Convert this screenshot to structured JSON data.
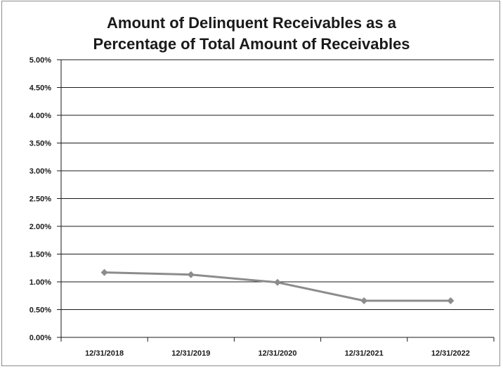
{
  "chart_data": {
    "type": "line",
    "title_lines": [
      "Amount of Delinquent Receivables as a",
      "Percentage of Total Amount of Receivables"
    ],
    "categories": [
      "12/31/2018",
      "12/31/2019",
      "12/31/2020",
      "12/31/2021",
      "12/31/2022"
    ],
    "values": [
      0.0117,
      0.0113,
      0.0099,
      0.0066,
      0.0066
    ],
    "ylim": [
      0,
      0.05
    ],
    "y_ticks": [
      0,
      0.005,
      0.01,
      0.015,
      0.02,
      0.025,
      0.03,
      0.035,
      0.04,
      0.045,
      0.05
    ],
    "y_tick_labels": [
      "0.00%",
      "0.50%",
      "1.00%",
      "1.50%",
      "2.00%",
      "2.50%",
      "3.00%",
      "3.50%",
      "4.00%",
      "4.50%",
      "5.00%"
    ],
    "grid": true,
    "legend": "none",
    "colors": {
      "line": "#8c8c8c",
      "marker": "#8c8c8c",
      "grid": "#1a1a1a",
      "axis": "#1a1a1a"
    }
  }
}
